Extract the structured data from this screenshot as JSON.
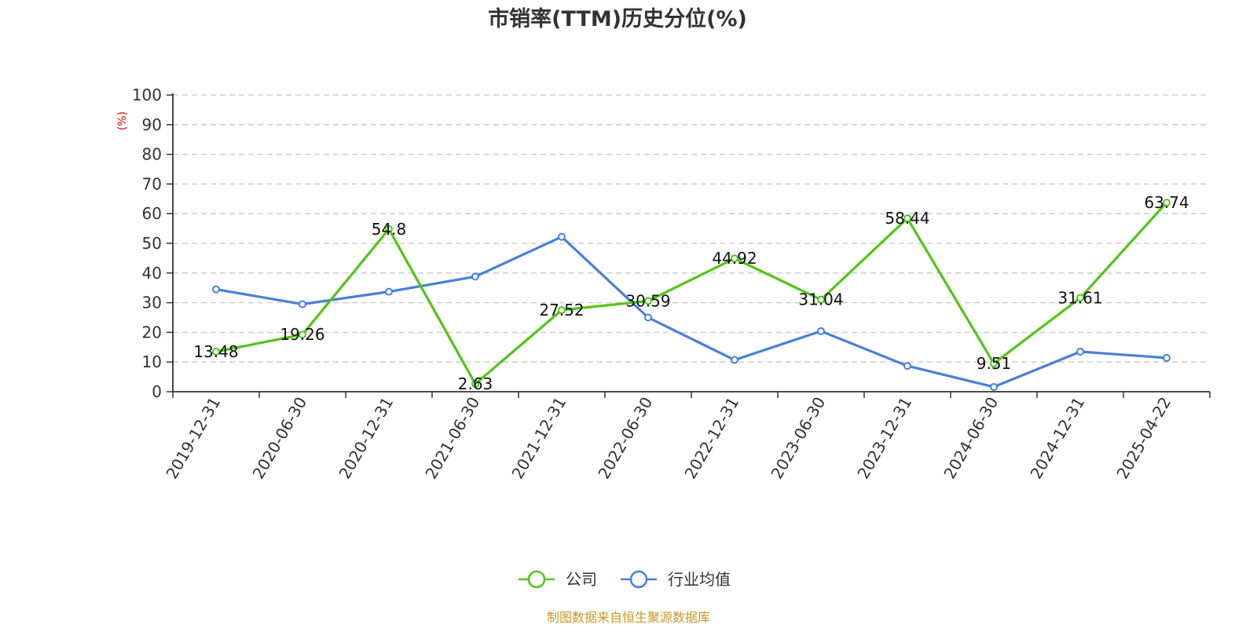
{
  "chart_data": {
    "type": "line",
    "title": "市销率(TTM)历史分位(%)",
    "y_unit": "(%)",
    "categories": [
      "2019-12-31",
      "2020-06-30",
      "2020-12-31",
      "2021-06-30",
      "2021-12-31",
      "2022-06-30",
      "2022-12-31",
      "2023-06-30",
      "2023-12-31",
      "2024-06-30",
      "2024-12-31",
      "2025-04-22"
    ],
    "yticks": [
      0,
      10,
      20,
      30,
      40,
      50,
      60,
      70,
      80,
      90,
      100
    ],
    "ylim": [
      0,
      100
    ],
    "grid": true,
    "legend_position": "bottom-center",
    "series": [
      {
        "name": "公司",
        "color": "#52c41a",
        "show_labels": true,
        "values": [
          13.48,
          19.26,
          54.8,
          2.63,
          27.52,
          30.59,
          44.92,
          31.04,
          58.44,
          9.51,
          31.61,
          63.74
        ],
        "labels": [
          "13.48",
          "19.26",
          "54.8",
          "2.63",
          "27.52",
          "30.59",
          "44.92",
          "31.04",
          "58.44",
          "9.51",
          "31.61",
          "63.74"
        ]
      },
      {
        "name": "行业均值",
        "color": "#4a7fdc",
        "show_labels": false,
        "values": [
          34.5,
          29.5,
          33.7,
          38.8,
          52.2,
          25.0,
          10.7,
          20.4,
          8.7,
          1.6,
          13.5,
          11.4
        ]
      }
    ],
    "source": "制图数据来自恒生聚源数据库"
  }
}
